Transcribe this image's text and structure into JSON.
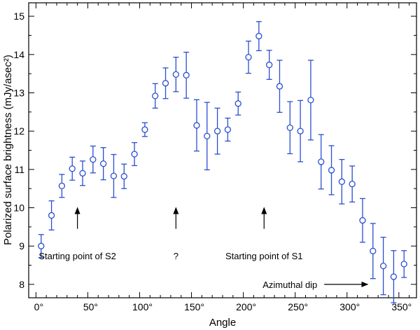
{
  "chart_data": {
    "type": "scatter",
    "title": "",
    "xlabel": "Angle",
    "ylabel": "Polarized surface brightness (mJy/asec²)",
    "xlim": [
      -7,
      367
    ],
    "ylim": [
      7.65,
      15.35
    ],
    "x_ticks": [
      0,
      50,
      100,
      150,
      200,
      250,
      300,
      350
    ],
    "x_tick_labels": [
      "0°",
      "50°",
      "100°",
      "150°",
      "200°",
      "250°",
      "300°",
      "350°"
    ],
    "y_ticks": [
      8,
      9,
      10,
      11,
      12,
      13,
      14,
      15
    ],
    "y_tick_labels": [
      "8",
      "9",
      "10",
      "11",
      "12",
      "13",
      "14",
      "15"
    ],
    "grid": false,
    "marker": "open-circle",
    "color": "#2a4fcf",
    "series": [
      {
        "name": "Polarized surface brightness",
        "x": [
          5,
          15,
          25,
          35,
          45,
          55,
          65,
          75,
          85,
          95,
          105,
          115,
          125,
          135,
          145,
          155,
          165,
          175,
          185,
          195,
          205,
          215,
          225,
          235,
          245,
          255,
          265,
          275,
          285,
          295,
          305,
          315,
          325,
          335,
          345,
          355
        ],
        "y": [
          9.0,
          9.8,
          10.57,
          11.02,
          10.9,
          11.26,
          11.15,
          10.83,
          10.82,
          11.4,
          12.04,
          12.92,
          13.25,
          13.48,
          13.46,
          12.15,
          11.87,
          12.0,
          12.04,
          12.72,
          13.93,
          14.48,
          13.73,
          13.17,
          12.09,
          12.0,
          12.81,
          11.2,
          10.98,
          10.68,
          10.62,
          9.67,
          8.87,
          8.48,
          8.2,
          8.53
        ],
        "err_low": [
          0.3,
          0.38,
          0.3,
          0.3,
          0.32,
          0.35,
          0.42,
          0.56,
          0.32,
          0.3,
          0.18,
          0.32,
          0.4,
          0.45,
          0.6,
          0.67,
          0.88,
          0.6,
          0.3,
          0.3,
          0.42,
          0.38,
          0.38,
          0.68,
          0.68,
          0.8,
          1.04,
          0.71,
          0.64,
          0.58,
          0.47,
          0.57,
          0.72,
          0.75,
          0.68,
          0.35
        ],
        "err_high": [
          0.3,
          0.38,
          0.3,
          0.3,
          0.32,
          0.35,
          0.42,
          0.56,
          0.32,
          0.3,
          0.18,
          0.32,
          0.4,
          0.45,
          0.6,
          0.67,
          0.88,
          0.6,
          0.3,
          0.3,
          0.42,
          0.38,
          0.38,
          0.68,
          0.68,
          0.8,
          1.04,
          0.71,
          0.64,
          0.58,
          0.47,
          0.57,
          0.72,
          0.75,
          0.68,
          0.35
        ]
      }
    ],
    "annotations": [
      {
        "text": "Starting point of S2",
        "arrow_x": 40,
        "arrow_from_y": 9.45,
        "arrow_to_y": 10.0,
        "text_x": 40,
        "text_y": 8.75,
        "direction": "up"
      },
      {
        "text": "?",
        "arrow_x": 135,
        "arrow_from_y": 9.45,
        "arrow_to_y": 10.0,
        "text_x": 135,
        "text_y": 8.75,
        "direction": "up"
      },
      {
        "text": "Starting point of S1",
        "arrow_x": 220,
        "arrow_from_y": 9.45,
        "arrow_to_y": 10.0,
        "text_x": 220,
        "text_y": 8.75,
        "direction": "up"
      },
      {
        "text": "Azimuthal dip",
        "arrow_y": 8.0,
        "arrow_from_x": 278,
        "arrow_to_x": 320,
        "text_x": 245,
        "text_y": 8.0,
        "direction": "right"
      }
    ]
  }
}
